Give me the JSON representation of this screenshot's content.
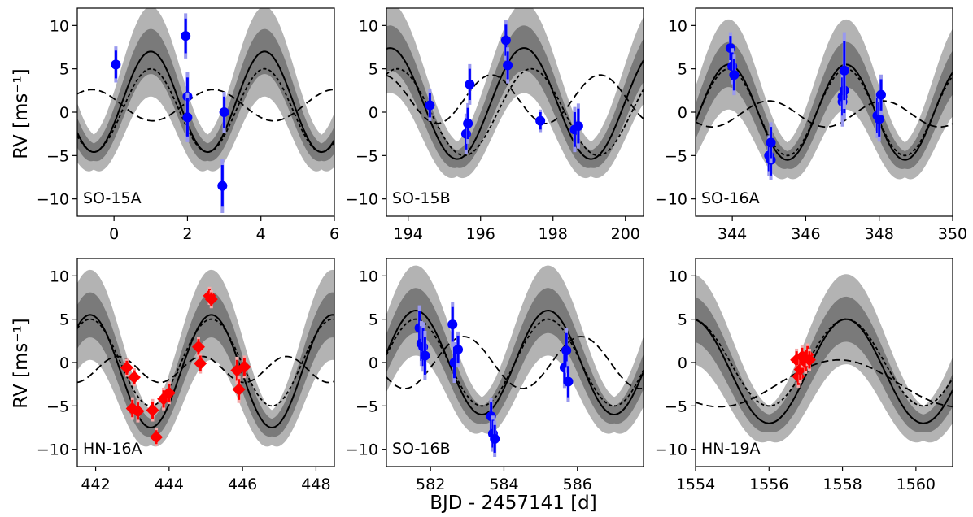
{
  "figure": {
    "ylabel": "RV [ms⁻¹]",
    "xlabel": "BJD - 2457141 [d]"
  },
  "chart_data": [
    {
      "type": "line",
      "label": "SO-15A",
      "xlim": [
        -1,
        6
      ],
      "ylim": [
        -12,
        12
      ],
      "xticks": [
        0,
        2,
        4,
        6
      ],
      "yticks": [
        -10,
        -5,
        0,
        5,
        10
      ],
      "model": {
        "amplitude": 5.8,
        "period": 3.1,
        "t_peak": 1.0,
        "offset": 1.2
      },
      "planets": [
        {
          "style": "dashed",
          "amplitude": 1.8,
          "period": 3.3,
          "t_peak": -0.6,
          "offset": 0.8
        },
        {
          "style": "dotted",
          "amplitude": 4.8,
          "period": 3.1,
          "t_peak": 1.0,
          "offset": 0.2
        }
      ],
      "points": {
        "marker": "circle",
        "color": "#0000ff",
        "errcolor": "#9999ee",
        "x": [
          0.05,
          1.95,
          2.0,
          2.0,
          3.0,
          2.95
        ],
        "y": [
          5.5,
          8.8,
          1.8,
          -0.6,
          0.0,
          -8.5
        ],
        "err": [
          1.6,
          2.0,
          2.2,
          2.2,
          1.8,
          2.4
        ]
      }
    },
    {
      "type": "line",
      "label": "SO-15B",
      "xlim": [
        193.4,
        200.5
      ],
      "ylim": [
        -12,
        12
      ],
      "xticks": [
        194,
        196,
        198,
        200
      ],
      "yticks": [
        -10,
        -5,
        0,
        5,
        10
      ],
      "model": {
        "amplitude": 6.4,
        "period": 3.7,
        "t_peak": 193.5,
        "offset": 1.0
      },
      "planets": [
        {
          "style": "dashed",
          "amplitude": 2.8,
          "period": 3.0,
          "t_peak": 193.3,
          "offset": 1.5
        },
        {
          "style": "dotted",
          "amplitude": 5.0,
          "period": 3.7,
          "t_peak": 193.7,
          "offset": 0.0
        }
      ],
      "points": {
        "marker": "circle",
        "color": "#0000ff",
        "errcolor": "#9999ee",
        "x": [
          194.6,
          195.6,
          195.65,
          195.7,
          196.7,
          196.75,
          197.65,
          198.6,
          198.7
        ],
        "y": [
          0.8,
          -2.5,
          -1.3,
          3.2,
          8.3,
          5.4,
          -1.0,
          -2.0,
          -1.6
        ],
        "err": [
          1.4,
          1.8,
          1.8,
          1.8,
          1.8,
          1.6,
          1.0,
          2.0,
          2.0
        ]
      }
    },
    {
      "type": "line",
      "label": "SO-16A",
      "xlim": [
        343,
        350
      ],
      "ylim": [
        -12,
        12
      ],
      "xticks": [
        344,
        346,
        348,
        350
      ],
      "yticks": [
        -10,
        -5,
        0,
        5,
        10
      ],
      "model": {
        "amplitude": 5.5,
        "period": 3.2,
        "t_peak": 343.9,
        "offset": 0.0
      },
      "planets": [
        {
          "style": "dashed",
          "amplitude": 1.5,
          "period": 3.1,
          "t_peak": 345.0,
          "offset": -0.2
        },
        {
          "style": "dotted",
          "amplitude": 5.0,
          "period": 3.2,
          "t_peak": 343.9,
          "offset": 0.0
        }
      ],
      "points": {
        "marker": "circle",
        "color": "#0000ff",
        "errcolor": "#9999ee",
        "x": [
          343.95,
          344.0,
          344.05,
          345.0,
          345.05,
          345.05,
          347.0,
          347.0,
          347.05,
          347.05,
          347.95,
          348.0,
          348.05
        ],
        "y": [
          7.4,
          5.3,
          4.3,
          -5.0,
          -5.5,
          -3.5,
          1.2,
          1.8,
          2.5,
          4.8,
          -0.4,
          -0.8,
          2.0
        ],
        "err": [
          1.4,
          1.6,
          1.8,
          1.8,
          1.8,
          1.8,
          2.2,
          2.2,
          2.6,
          3.4,
          2.0,
          2.0,
          1.8
        ]
      }
    },
    {
      "type": "line",
      "label": "HN-16A",
      "xlim": [
        441.5,
        448.5
      ],
      "ylim": [
        -12,
        12
      ],
      "xticks": [
        442,
        444,
        446,
        448
      ],
      "yticks": [
        -10,
        -5,
        0,
        5,
        10
      ],
      "model": {
        "amplitude": 6.5,
        "period": 3.3,
        "t_peak": 441.85,
        "offset": -1.0
      },
      "planets": [
        {
          "style": "dashed",
          "amplitude": 1.5,
          "period": 2.3,
          "t_peak": 442.6,
          "offset": -0.8
        },
        {
          "style": "dotted",
          "amplitude": 5.0,
          "period": 3.3,
          "t_peak": 441.85,
          "offset": 0.0
        }
      ],
      "points": {
        "marker": "diamond",
        "color": "#ff0000",
        "errcolor": "#f5aaaa",
        "x": [
          442.85,
          443.0,
          443.05,
          443.15,
          443.55,
          443.65,
          443.85,
          444.0,
          444.8,
          444.85,
          445.1,
          445.15,
          445.85,
          445.9,
          446.05
        ],
        "y": [
          -0.6,
          -5.3,
          -1.7,
          -5.6,
          -5.5,
          -8.6,
          -4.2,
          -3.5,
          1.8,
          -0.1,
          7.7,
          7.3,
          -0.9,
          -3.1,
          -0.5
        ],
        "err": [
          0.8,
          1.0,
          0.8,
          1.0,
          1.0,
          0.8,
          1.0,
          1.0,
          0.9,
          0.9,
          0.8,
          0.8,
          1.2,
          1.2,
          1.0
        ]
      }
    },
    {
      "type": "line",
      "label": "SO-16B",
      "xlim": [
        580.8,
        587.8
      ],
      "ylim": [
        -12,
        12
      ],
      "xticks": [
        582,
        584,
        586
      ],
      "yticks": [
        -10,
        -5,
        0,
        5,
        10
      ],
      "model": {
        "amplitude": 6.0,
        "period": 3.6,
        "t_peak": 581.6,
        "offset": 0.0
      },
      "planets": [
        {
          "style": "dashed",
          "amplitude": 3.0,
          "period": 3.2,
          "t_peak": 582.9,
          "offset": 0.0
        },
        {
          "style": "dotted",
          "amplitude": 5.0,
          "period": 3.6,
          "t_peak": 581.6,
          "offset": 0.0
        }
      ],
      "points": {
        "marker": "circle",
        "color": "#0000ff",
        "errcolor": "#9999ee",
        "x": [
          581.7,
          581.75,
          581.8,
          581.85,
          582.6,
          582.65,
          582.75,
          583.65,
          583.7,
          583.75,
          585.65,
          585.7,
          585.75
        ],
        "y": [
          4.0,
          2.2,
          1.8,
          0.8,
          4.4,
          0.0,
          1.5,
          -6.2,
          -8.2,
          -8.8,
          -0.6,
          1.4,
          -2.2
        ],
        "err": [
          2.0,
          2.0,
          2.2,
          2.2,
          2.0,
          1.8,
          1.6,
          1.6,
          1.6,
          1.6,
          1.8,
          2.0,
          1.8
        ]
      }
    },
    {
      "type": "line",
      "label": "HN-19A",
      "xlim": [
        1554,
        1561
      ],
      "ylim": [
        -12,
        12
      ],
      "xticks": [
        1554,
        1556,
        1558,
        1560
      ],
      "yticks": [
        -10,
        -5,
        0,
        5,
        10
      ],
      "model": {
        "amplitude": 6.0,
        "period": 4.2,
        "t_peak": 1553.9,
        "offset": -1.0
      },
      "planets": [
        {
          "style": "dashed",
          "amplitude": 2.7,
          "period": 6.5,
          "t_peak": 1557.9,
          "offset": -2.4
        },
        {
          "style": "dotted",
          "amplitude": 5.0,
          "period": 4.2,
          "t_peak": 1553.9,
          "offset": 0.0
        }
      ],
      "points": {
        "marker": "diamond",
        "color": "#ff0000",
        "errcolor": "#f5aaaa",
        "x": [
          1556.75,
          1556.8,
          1556.85,
          1556.9,
          1557.0,
          1557.05,
          1557.1
        ],
        "y": [
          0.3,
          -1.6,
          -0.8,
          0.7,
          0.0,
          0.9,
          0.3
        ],
        "err": [
          1.0,
          1.0,
          1.2,
          1.0,
          1.0,
          1.0,
          1.0
        ]
      }
    }
  ]
}
